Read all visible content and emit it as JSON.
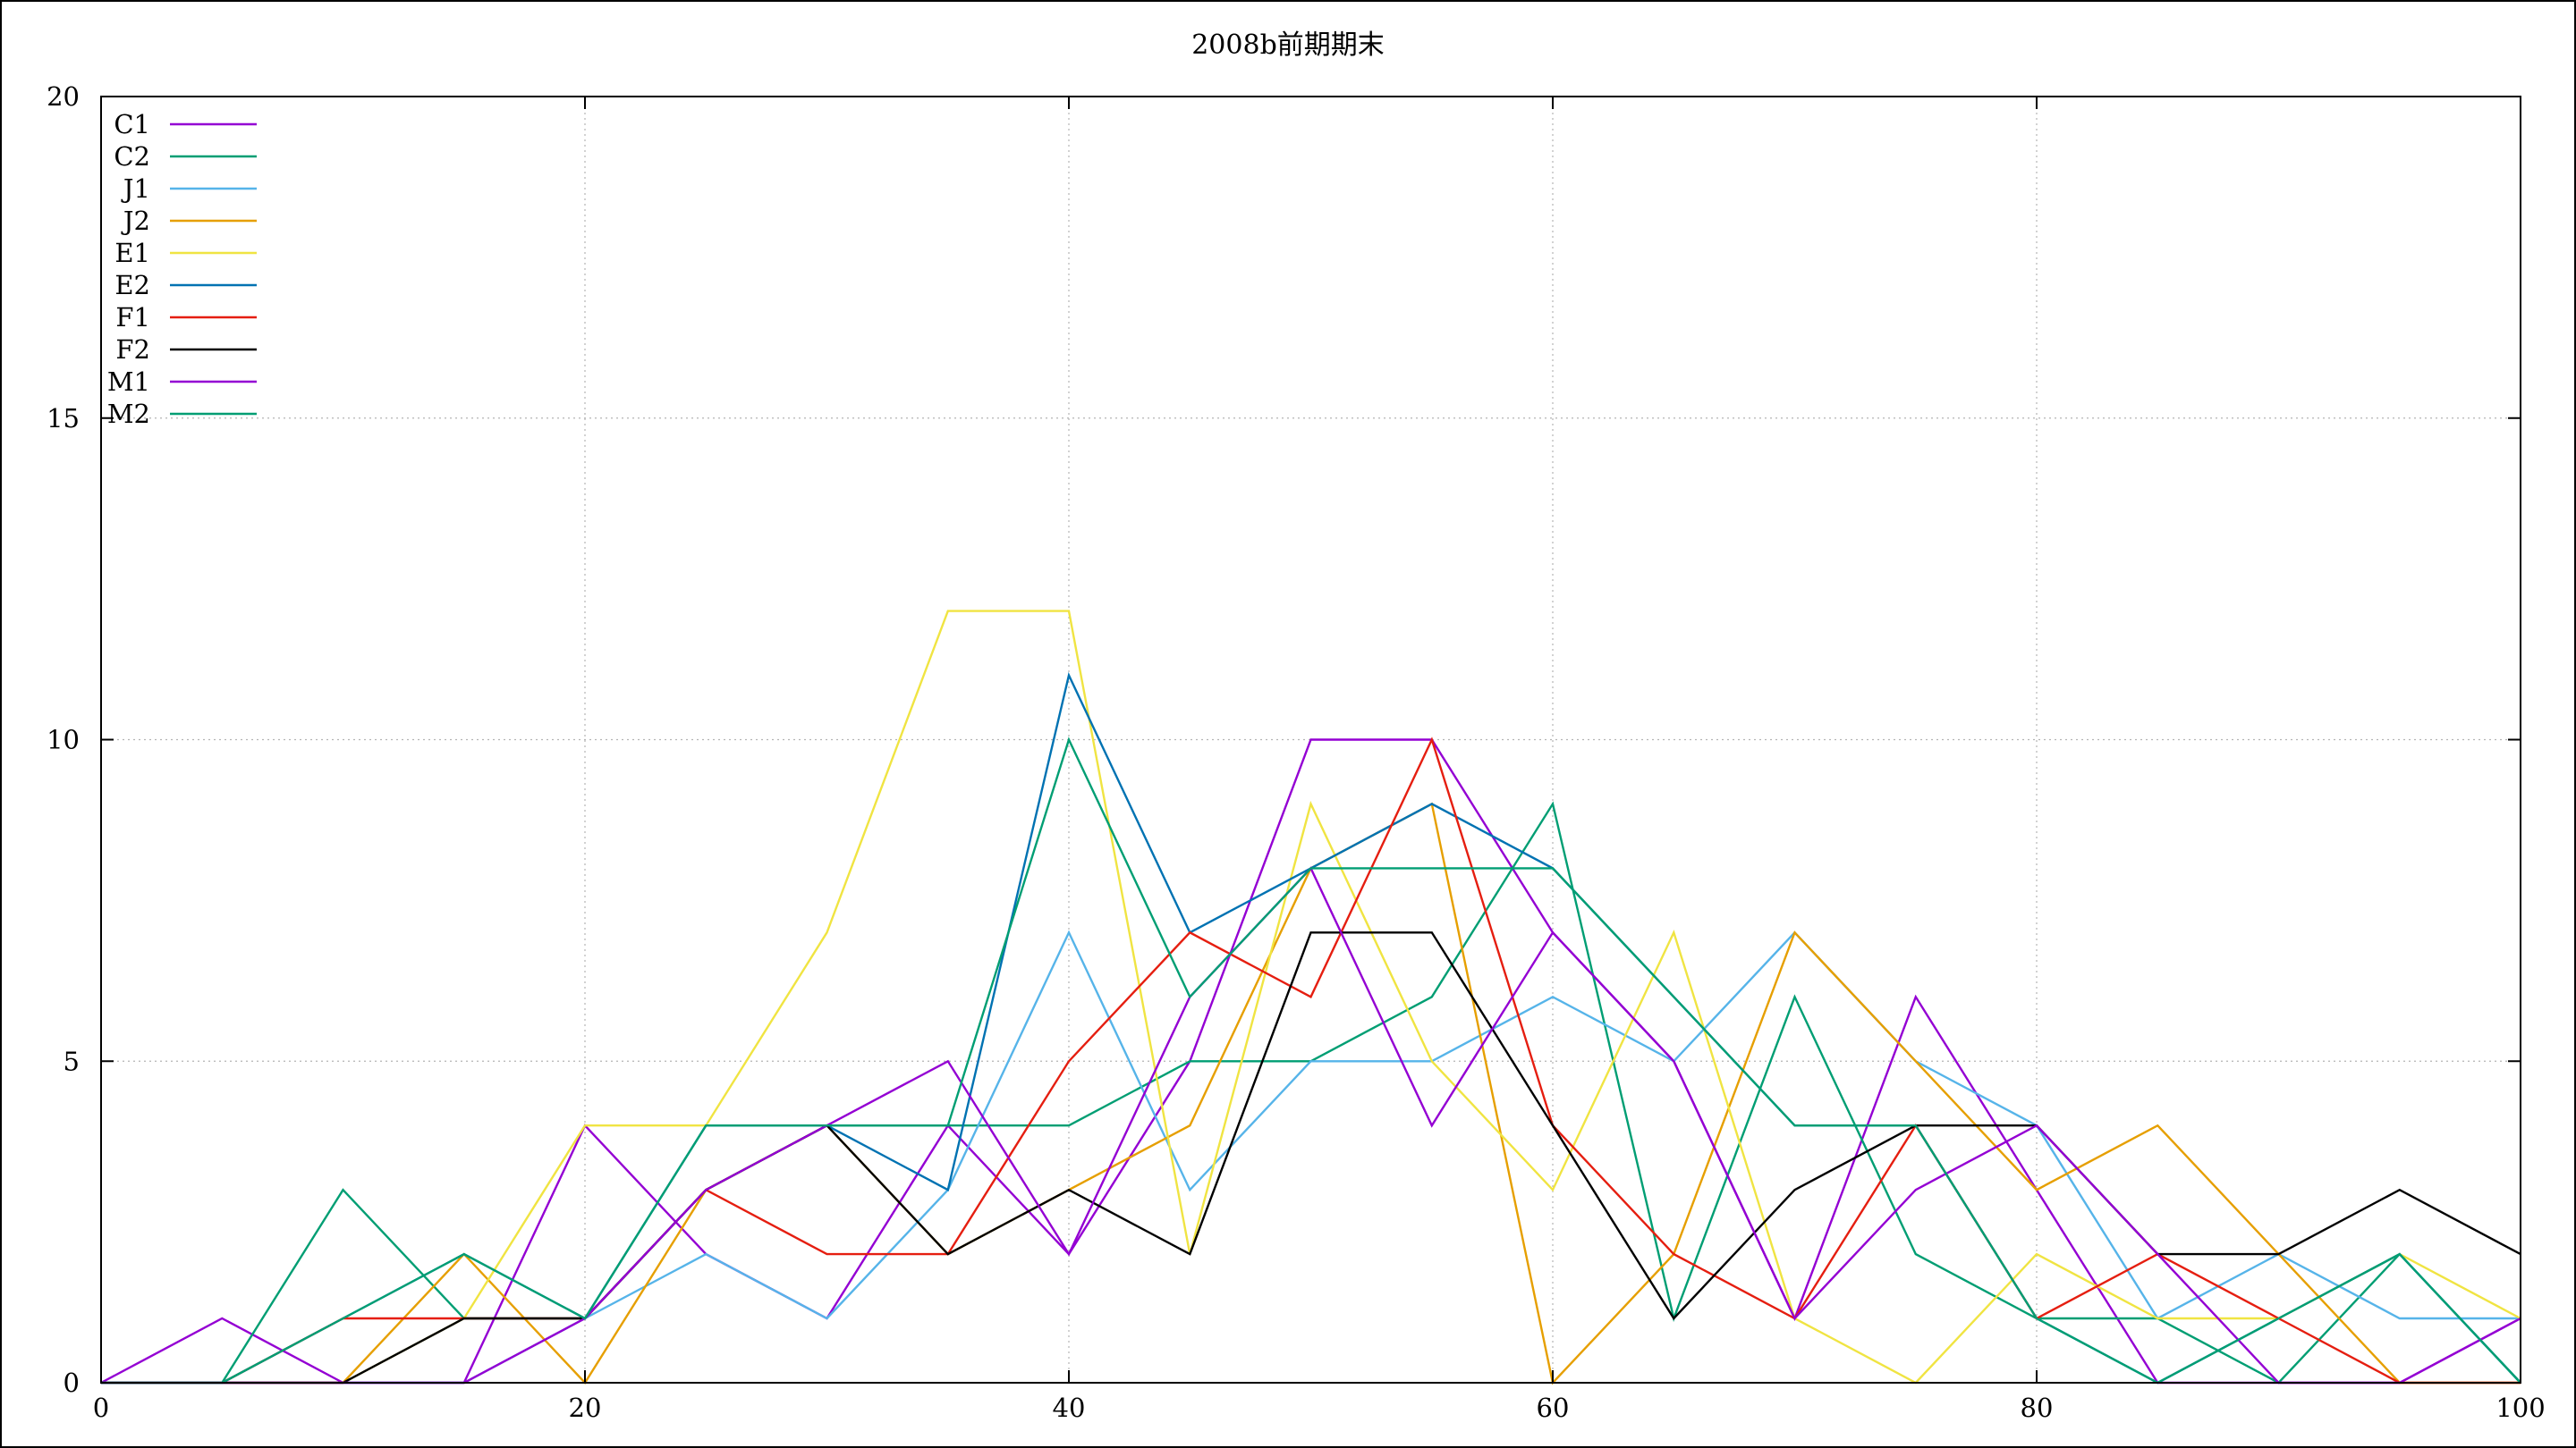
{
  "chart_data": {
    "type": "line",
    "title": "2008b前期期末",
    "xlabel": "",
    "ylabel": "",
    "xlim": [
      0,
      100
    ],
    "ylim": [
      0,
      20
    ],
    "x_ticks": [
      0,
      20,
      40,
      60,
      80,
      100
    ],
    "y_ticks": [
      0,
      5,
      10,
      15,
      20
    ],
    "grid": true,
    "legend_position": "top-left",
    "x": [
      0,
      5,
      10,
      15,
      20,
      25,
      30,
      35,
      40,
      45,
      50,
      55,
      60,
      65,
      70,
      75,
      80,
      85,
      90,
      95,
      100
    ],
    "series": [
      {
        "name": "C1",
        "color": "#9400d3",
        "values": [
          0,
          1,
          0,
          0,
          4,
          2,
          1,
          4,
          2,
          5,
          10,
          10,
          7,
          5,
          1,
          6,
          3,
          0,
          0,
          0,
          1
        ]
      },
      {
        "name": "C2",
        "color": "#009e73",
        "values": [
          0,
          0,
          3,
          1,
          1,
          3,
          4,
          4,
          4,
          5,
          5,
          6,
          9,
          1,
          6,
          2,
          1,
          1,
          0,
          2,
          0
        ]
      },
      {
        "name": "J1",
        "color": "#56b4e9",
        "values": [
          0,
          0,
          0,
          0,
          1,
          2,
          1,
          3,
          7,
          3,
          5,
          5,
          6,
          5,
          7,
          5,
          4,
          1,
          2,
          1,
          1
        ]
      },
      {
        "name": "J2",
        "color": "#e69f00",
        "values": [
          0,
          0,
          0,
          2,
          0,
          3,
          4,
          2,
          3,
          4,
          8,
          9,
          0,
          2,
          7,
          5,
          3,
          4,
          2,
          0,
          0
        ]
      },
      {
        "name": "E1",
        "color": "#f0e442",
        "values": [
          0,
          0,
          0,
          1,
          4,
          4,
          7,
          12,
          12,
          2,
          9,
          5,
          3,
          7,
          1,
          0,
          2,
          1,
          1,
          2,
          1
        ]
      },
      {
        "name": "E2",
        "color": "#0072b2",
        "values": [
          0,
          0,
          1,
          2,
          1,
          4,
          4,
          3,
          11,
          7,
          8,
          9,
          8,
          6,
          4,
          4,
          1,
          0,
          1,
          2,
          0
        ]
      },
      {
        "name": "F1",
        "color": "#e51e10",
        "values": [
          0,
          0,
          1,
          1,
          1,
          3,
          2,
          2,
          5,
          7,
          6,
          10,
          4,
          2,
          1,
          4,
          1,
          2,
          1,
          0,
          0
        ]
      },
      {
        "name": "F2",
        "color": "#000000",
        "values": [
          0,
          0,
          0,
          1,
          1,
          3,
          4,
          2,
          3,
          2,
          7,
          7,
          4,
          1,
          3,
          4,
          4,
          2,
          2,
          3,
          2
        ]
      },
      {
        "name": "M1",
        "color": "#9400d3",
        "values": [
          0,
          0,
          0,
          0,
          1,
          3,
          4,
          5,
          2,
          6,
          8,
          4,
          7,
          5,
          1,
          3,
          4,
          2,
          0,
          0,
          1
        ]
      },
      {
        "name": "M2",
        "color": "#009e73",
        "values": [
          0,
          0,
          1,
          2,
          1,
          4,
          4,
          4,
          10,
          6,
          8,
          8,
          8,
          6,
          4,
          4,
          1,
          0,
          1,
          2,
          0
        ]
      }
    ]
  }
}
